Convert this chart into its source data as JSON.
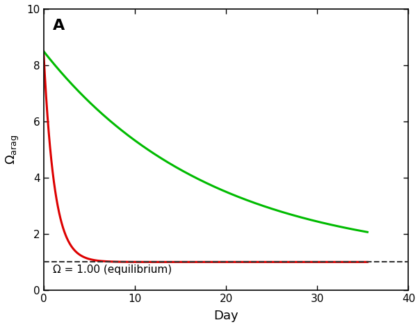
{
  "xlabel": "Day",
  "panel_label": "A",
  "xlim": [
    0,
    40
  ],
  "ylim": [
    0,
    10
  ],
  "xticks": [
    0,
    10,
    20,
    30,
    40
  ],
  "yticks": [
    0,
    2,
    4,
    6,
    8,
    10
  ],
  "equilibrium_y": 1.0,
  "equilibrium_label": "Ω = 1.00 (equilibrium)",
  "red_curve": {
    "y0": 8.5,
    "decay_rate": 0.85,
    "asymptote": 1.0,
    "color": "#dd0000",
    "linewidth": 2.2
  },
  "green_curve": {
    "y0": 8.5,
    "decay_rate": 0.055,
    "asymptote": 1.0,
    "color": "#00bb00",
    "linewidth": 2.2
  },
  "dashed_line": {
    "color": "#333333",
    "linewidth": 1.5,
    "linestyle": "--"
  },
  "background_color": "#ffffff",
  "axis_color": "#000000",
  "font_size_label": 13,
  "font_size_tick": 11,
  "font_size_panel": 16,
  "font_size_annotation": 11
}
